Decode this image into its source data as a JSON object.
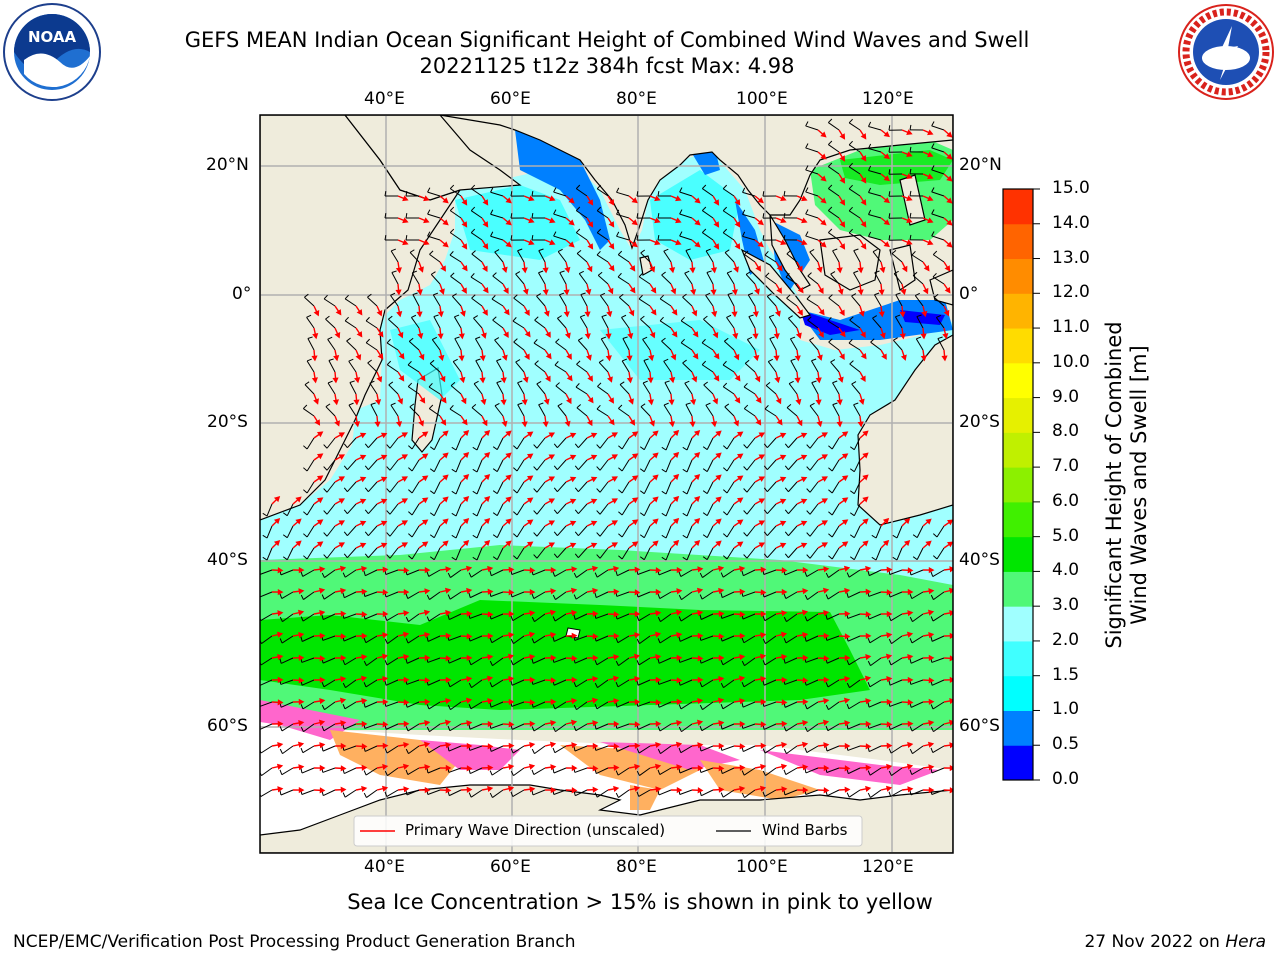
{
  "header": {
    "title_line1": "GEFS MEAN Indian Ocean Significant Height of Combined Wind Waves and Swell",
    "title_line2": "20221125 t12z 384h fcst   Max: 4.98"
  },
  "logos": {
    "left": {
      "icon": "noaa-logo-icon",
      "text": "NOAA",
      "ring_text": "NATIONAL OCEANIC AND ATMOSPHERIC ADMINISTRATION · U.S. DEPARTMENT OF COMMERCE"
    },
    "right": {
      "icon": "national-weather-service-logo-icon",
      "ring_text": "NATIONAL WEATHER SERVICE"
    }
  },
  "map": {
    "lon_ticks_top": [
      "40°E",
      "60°E",
      "80°E",
      "100°E",
      "120°E"
    ],
    "lon_ticks_bottom": [
      "40°E",
      "60°E",
      "80°E",
      "100°E",
      "120°E"
    ],
    "lat_ticks_left": [
      "20°N",
      "0°",
      "20°S",
      "40°S",
      "60°S"
    ],
    "lat_ticks_right": [
      "20°N",
      "0°",
      "20°S",
      "40°S",
      "60°S"
    ],
    "max_value": 4.98,
    "land_color": "#efecdc",
    "ice_region_color": "#ffffff",
    "grid": true
  },
  "legend": {
    "placement": "bottom-center",
    "items": [
      {
        "label": "Primary Wave Direction (unscaled)",
        "color": "#ff0000"
      },
      {
        "label": "Wind Barbs",
        "color": "#000000"
      }
    ]
  },
  "colorbar": {
    "label_line1": "Significant Height of Combined",
    "label_line2": "Wind Waves and Swell [m]",
    "ticks": [
      "0.0",
      "0.5",
      "1.0",
      "1.5",
      "2.0",
      "3.0",
      "4.0",
      "5.0",
      "6.0",
      "7.0",
      "8.0",
      "9.0",
      "10.0",
      "11.0",
      "12.0",
      "13.0",
      "14.0",
      "15.0"
    ],
    "colors": [
      "#0000ff",
      "#0080ff",
      "#00ffff",
      "#40ffff",
      "#a0ffff",
      "#50f878",
      "#00e600",
      "#40f000",
      "#8cf000",
      "#c0f000",
      "#e6f000",
      "#ffff00",
      "#ffdc00",
      "#ffb400",
      "#ff8c00",
      "#ff6400",
      "#ff3200",
      "#ff0000"
    ]
  },
  "footer": {
    "subtitle": "Sea Ice Concentration > 15% is shown in pink to yellow",
    "credit": "NCEP/EMC/Verification Post Processing Product Generation Branch",
    "date_prefix": "27 Nov 2022 on ",
    "date_machine": "Hera"
  }
}
